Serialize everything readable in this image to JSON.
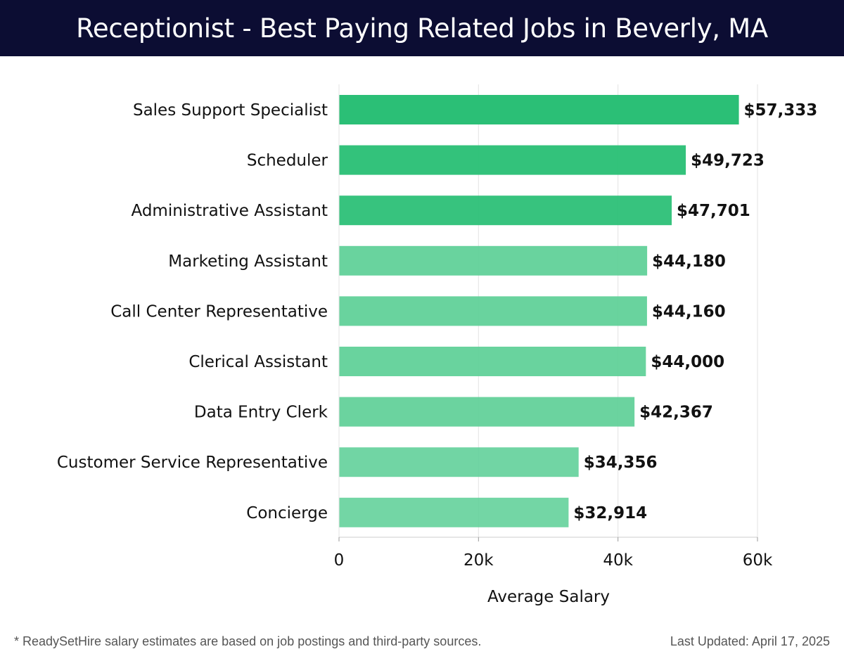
{
  "header": {
    "title": "Receptionist - Best Paying Related Jobs in Beverly, MA"
  },
  "chart_data": {
    "type": "bar",
    "orientation": "horizontal",
    "title": "Receptionist - Best Paying Related Jobs in Beverly, MA",
    "xlabel": "Average Salary",
    "ylabel": "",
    "xlim": [
      0,
      60000
    ],
    "x_ticks": [
      0,
      20000,
      40000,
      60000
    ],
    "x_tick_labels": [
      "0",
      "20k",
      "40k",
      "60k"
    ],
    "grid": true,
    "categories": [
      "Sales Support Specialist",
      "Scheduler",
      "Administrative Assistant",
      "Marketing Assistant",
      "Call Center Representative",
      "Clerical Assistant",
      "Data Entry Clerk",
      "Customer Service Representative",
      "Concierge"
    ],
    "values": [
      57333,
      49723,
      47701,
      44180,
      44160,
      44000,
      42367,
      34356,
      32914
    ],
    "value_labels": [
      "$57,333",
      "$49,723",
      "$47,701",
      "$44,180",
      "$44,160",
      "$44,000",
      "$42,367",
      "$34,356",
      "$32,914"
    ],
    "colors": {
      "bar_strong": "#2bbf76",
      "bar_light": "#5ccf96",
      "grid": "#e3e3e3",
      "axis": "#cccccc",
      "label": "#111111"
    }
  },
  "footer": {
    "note": "* ReadySetHire salary estimates are based on job postings and third-party sources.",
    "updated": "Last Updated: April 17, 2025"
  }
}
